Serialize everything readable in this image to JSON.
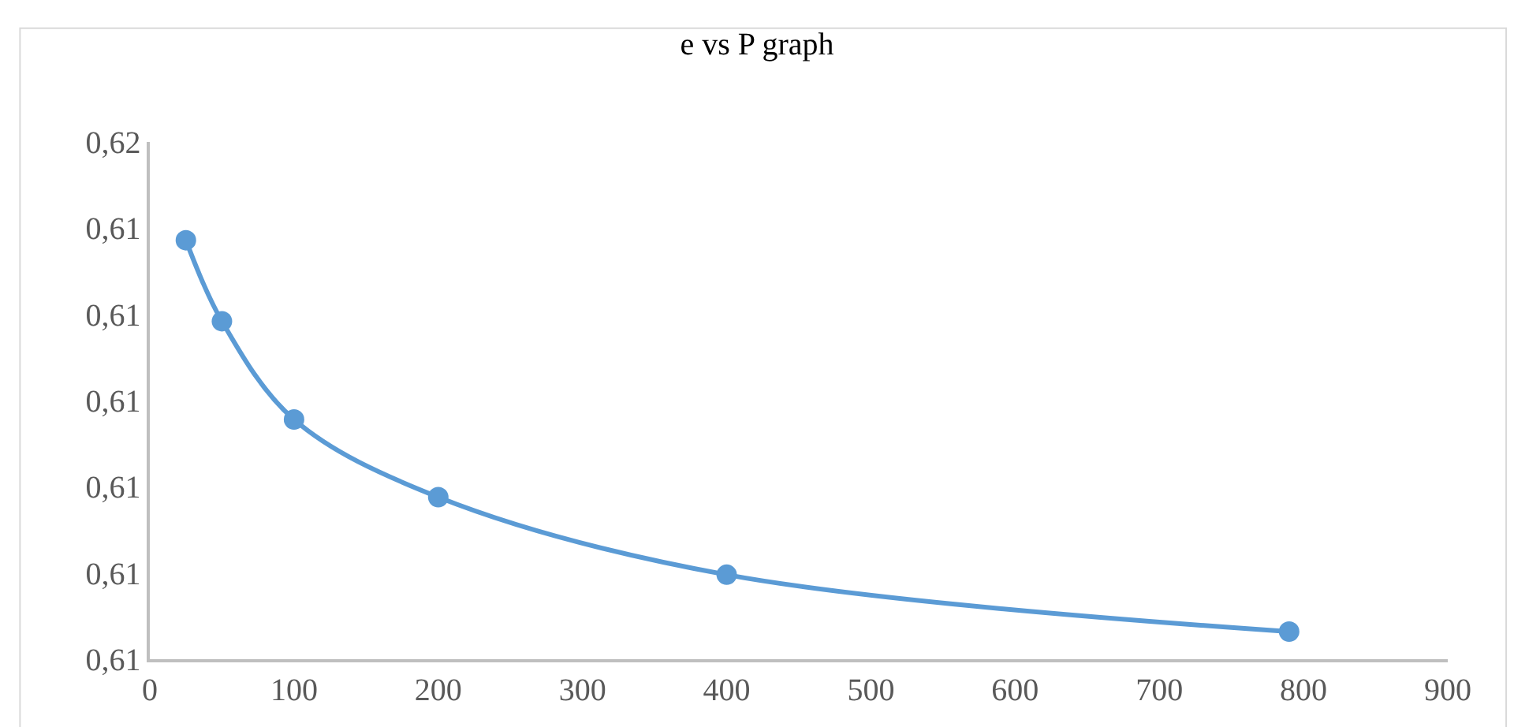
{
  "chart_data": {
    "type": "line",
    "title": "e vs P graph",
    "x": [
      25,
      50,
      100,
      200,
      400,
      790
    ],
    "series": [
      {
        "color": "#5b9bd5",
        "values": [
          0.61443,
          0.61396,
          0.61339,
          0.61294,
          0.61249,
          0.61216
        ]
      }
    ],
    "xlim": [
      0,
      900
    ],
    "xticks": [
      0,
      100,
      200,
      300,
      400,
      500,
      600,
      700,
      800,
      900
    ],
    "ylim": [
      0.612,
      0.615
    ],
    "yticks": [
      {
        "value": 0.612,
        "label": "0,61"
      },
      {
        "value": 0.6125,
        "label": "0,61"
      },
      {
        "value": 0.613,
        "label": "0,61"
      },
      {
        "value": 0.6135,
        "label": "0,61"
      },
      {
        "value": 0.614,
        "label": "0,61"
      },
      {
        "value": 0.6145,
        "label": "0,61"
      },
      {
        "value": 0.615,
        "label": "0,62"
      }
    ],
    "marker": "circle",
    "line_style": "solid"
  }
}
